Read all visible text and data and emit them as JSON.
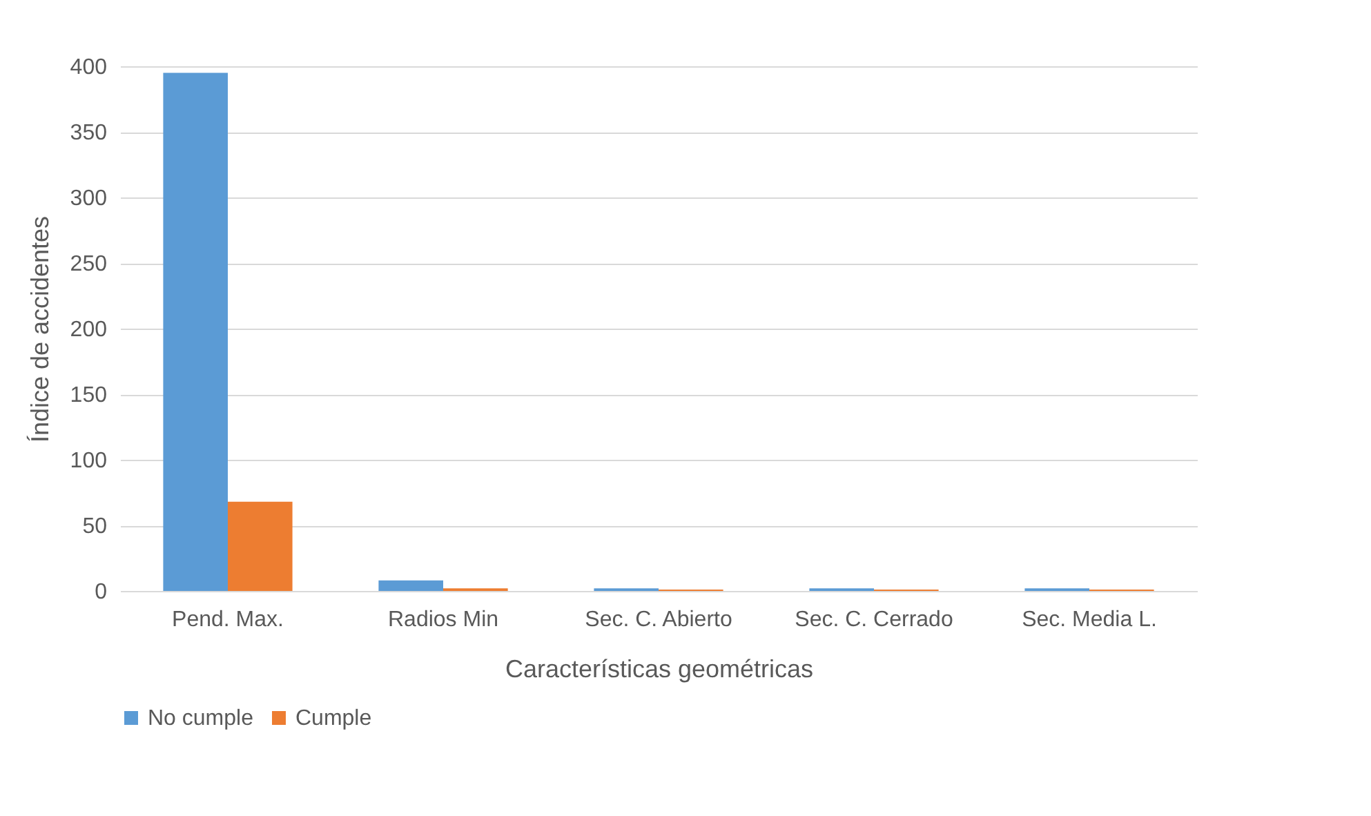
{
  "chart_data": {
    "type": "bar",
    "xlabel": "Características geométricas",
    "ylabel": "Índice de accidentes",
    "categories": [
      "Pend. Max.",
      "Radios Min",
      "Sec. C. Abierto",
      "Sec. C. Cerrado",
      "Sec. Media L."
    ],
    "series": [
      {
        "name": "No cumple",
        "color": "#5b9bd5",
        "values": [
          395,
          8,
          2,
          2,
          2
        ]
      },
      {
        "name": "Cumple",
        "color": "#ed7d31",
        "values": [
          68,
          2,
          1,
          1,
          1
        ]
      }
    ],
    "ylim": [
      0,
      400
    ],
    "yticks": [
      0,
      50,
      100,
      150,
      200,
      250,
      300,
      350,
      400
    ],
    "grid": "y",
    "legend": "bottom"
  }
}
